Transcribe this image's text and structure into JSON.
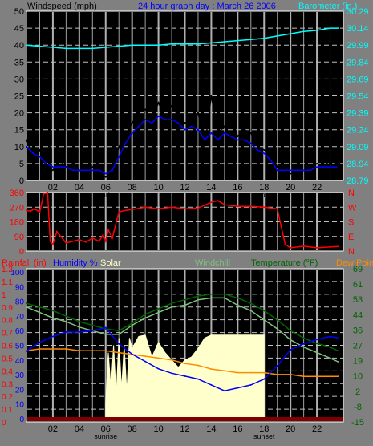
{
  "colors": {
    "background": "#808080",
    "plot_bg": "#000000",
    "grid_dash": "#c0c0c0",
    "grid_major": "#b0b0b0",
    "wind_gust": "#000000",
    "wind_avg": "#0000ff",
    "barometer": "#00ffff",
    "direction": "#ff0000",
    "rainfall": "#ff0000",
    "humidity": "#0000ff",
    "solar": "#ffffcc",
    "windchill": "#80c080",
    "temperature": "#006400",
    "dew_point": "#ff8c00",
    "baseline_rain": "#800000"
  },
  "header": {
    "windspeed_label": "Windspeed (mph)",
    "graph_title": "24 hour graph day : March 26 2006",
    "barometer_label": "Barometer (in.)"
  },
  "legend_bottom": {
    "rainfall": "Rainfall (in)",
    "humidity": "Humidity %",
    "solar": "Solar",
    "windchill": "Windchill",
    "temperature": "Temperature (°F)",
    "dew_point": "Dew Point"
  },
  "x_ticks": [
    "02",
    "04",
    "06",
    "08",
    "10",
    "12",
    "14",
    "16",
    "18",
    "20",
    "22"
  ],
  "sunrise_label": "sunrise",
  "sunset_label": "sunset",
  "sunrise_hour": 6,
  "sunset_hour": 18,
  "chart_data": [
    {
      "type": "line",
      "title": "24 hour graph day : March 26 2006",
      "xlabel": "",
      "ylabel": "Windspeed (mph)",
      "ylabel_right": "Barometer (in.)",
      "x_hours": [
        0,
        23.6
      ],
      "ylim": [
        0,
        50
      ],
      "y_ticks": [
        0,
        5,
        10,
        15,
        20,
        25,
        30,
        35,
        40,
        45,
        50
      ],
      "ylim_right": [
        28.79,
        30.29
      ],
      "y_ticks_right": [
        "28.79",
        "28.94",
        "29.09",
        "29.24",
        "29.39",
        "29.54",
        "29.69",
        "29.84",
        "29.99",
        "30.14",
        "30.29"
      ],
      "series": [
        {
          "name": "Windspeed (mph)",
          "kind": "gust",
          "x": [
            0,
            0.5,
            1,
            1.5,
            2,
            2.5,
            3,
            3.5,
            4,
            4.5,
            5,
            5.5,
            6,
            6.5,
            7,
            7.5,
            8,
            8.5,
            9,
            9.5,
            10,
            10.5,
            11,
            11.5,
            12,
            12.5,
            13,
            13.5,
            14,
            14.5,
            15,
            15.5,
            16,
            16.5,
            17,
            17.5,
            18,
            18.5,
            19,
            19.5,
            20,
            20.5,
            21,
            21.5,
            22,
            22.5,
            23,
            23.5
          ],
          "values": [
            12,
            7,
            9,
            4,
            3,
            6,
            4,
            5,
            3,
            2,
            4,
            2,
            1,
            3,
            10,
            13,
            17,
            20,
            21,
            18,
            23,
            18,
            22,
            19,
            17,
            18,
            20,
            10,
            25,
            14,
            16,
            19,
            13,
            15,
            14,
            10,
            9,
            8,
            4,
            3,
            2,
            2,
            3,
            4,
            5,
            4,
            6,
            5
          ]
        },
        {
          "name": "Windspeed (mph)",
          "kind": "average",
          "x": [
            0,
            0.5,
            1,
            1.5,
            2,
            2.5,
            3,
            3.5,
            4,
            4.5,
            5,
            5.5,
            6,
            6.5,
            7,
            7.5,
            8,
            8.5,
            9,
            9.5,
            10,
            10.5,
            11,
            11.5,
            12,
            12.5,
            13,
            13.5,
            14,
            14.5,
            15,
            15.5,
            16,
            16.5,
            17,
            17.5,
            18,
            18.5,
            19,
            19.5,
            20,
            20.5,
            21,
            21.5,
            22,
            22.5,
            23,
            23.5
          ],
          "values": [
            10,
            8,
            7,
            5,
            4,
            4,
            4,
            3,
            3,
            3,
            3,
            3,
            2,
            3,
            7,
            11,
            14,
            16,
            18,
            17,
            19,
            18,
            18,
            17,
            15,
            16,
            15,
            12,
            14,
            12,
            14,
            13,
            12,
            12,
            11,
            9,
            8,
            6,
            3,
            3,
            3,
            3,
            3,
            3,
            4,
            4,
            4,
            4
          ]
        },
        {
          "name": "Barometer (in.)",
          "kind": "barometer",
          "x": [
            0,
            1,
            2,
            3,
            4,
            5,
            6,
            7,
            8,
            9,
            10,
            11,
            12,
            13,
            14,
            15,
            16,
            17,
            18,
            19,
            20,
            21,
            22,
            23,
            23.6
          ],
          "values": [
            29.99,
            29.98,
            29.97,
            29.96,
            29.96,
            29.96,
            29.97,
            29.98,
            29.99,
            29.99,
            29.99,
            30.0,
            30.0,
            30.0,
            30.01,
            30.02,
            30.03,
            30.04,
            30.05,
            30.07,
            30.09,
            30.11,
            30.12,
            30.14,
            30.14
          ]
        }
      ]
    },
    {
      "type": "line",
      "title": "",
      "xlabel": "",
      "ylabel": "",
      "ylim": [
        0,
        360
      ],
      "y_ticks": [
        0,
        90,
        180,
        270,
        360
      ],
      "compass_labels": [
        "N",
        "W",
        "S",
        "E",
        "N"
      ],
      "series": [
        {
          "name": "",
          "x": [
            0,
            0.3,
            0.6,
            1,
            1.3,
            1.6,
            1.8,
            2.0,
            2.3,
            2.6,
            3,
            3.5,
            4,
            4.5,
            5,
            5.5,
            5.8,
            6,
            6.2,
            6.5,
            7,
            7.5,
            8,
            9,
            10,
            11,
            12,
            13,
            14,
            14.5,
            15,
            16,
            17,
            18,
            18.5,
            19,
            19.3,
            19.6,
            20,
            21,
            22,
            23,
            23.6
          ],
          "values": [
            250,
            245,
            260,
            240,
            350,
            360,
            60,
            40,
            120,
            90,
            50,
            60,
            70,
            55,
            80,
            60,
            100,
            60,
            130,
            80,
            240,
            250,
            255,
            270,
            260,
            270,
            260,
            265,
            300,
            310,
            285,
            275,
            275,
            270,
            265,
            260,
            150,
            40,
            20,
            30,
            20,
            25,
            28
          ]
        }
      ]
    },
    {
      "type": "line",
      "title": "",
      "xlabel": "",
      "ylabel": "Rainfall (in)",
      "ylabel_right": "Temperature (°F)",
      "ylim_left_rain": [
        0,
        1.2
      ],
      "y_ticks_left_rain": [
        "0",
        "0.1",
        "0.2",
        "0.3",
        "0.4",
        "0.5",
        "0.6",
        "0.7",
        "0.8",
        "0.9",
        "1",
        "1.1",
        "1.2"
      ],
      "y_ticks_left_humidity": [
        "0",
        "10",
        "20",
        "30",
        "40",
        "50",
        "60",
        "70",
        "80",
        "90",
        "100"
      ],
      "ylim_right": [
        -15,
        69
      ],
      "y_ticks_right": [
        "-15",
        "-8",
        "2",
        "10",
        "19",
        "27",
        "36",
        "44",
        "53",
        "61",
        "69"
      ],
      "series": [
        {
          "name": "Rainfall (in)",
          "x": [
            0,
            23.6
          ],
          "values": [
            0,
            0
          ]
        },
        {
          "name": "Humidity %",
          "x": [
            0,
            1,
            2,
            3,
            4,
            5,
            6,
            7,
            8,
            9,
            10,
            11,
            12,
            13,
            14,
            15,
            16,
            17,
            18,
            19,
            20,
            21,
            22,
            23,
            23.6
          ],
          "values": [
            46,
            52,
            56,
            59,
            59,
            60,
            62,
            51,
            44,
            39,
            34,
            31,
            29,
            27,
            23,
            19,
            21,
            23,
            27,
            36,
            47,
            51,
            54,
            56,
            55
          ]
        },
        {
          "name": "Solar",
          "x": [
            6,
            6.2,
            6.4,
            6.6,
            6.8,
            7,
            7.2,
            7.4,
            7.6,
            7.8,
            8,
            8.5,
            9,
            9.5,
            10,
            10.5,
            11,
            11.5,
            12,
            12.5,
            13,
            13.5,
            14,
            15,
            16,
            17,
            17.5,
            18
          ],
          "values": [
            10,
            45,
            20,
            50,
            15,
            55,
            20,
            50,
            18,
            55,
            48,
            56,
            57,
            42,
            52,
            45,
            40,
            35,
            40,
            42,
            48,
            55,
            57,
            57,
            57,
            57,
            57,
            57
          ]
        },
        {
          "name": "Windchill",
          "x": [
            0,
            1,
            2,
            3,
            4,
            5,
            6,
            7,
            8,
            9,
            10,
            11,
            12,
            13,
            14,
            15,
            16,
            17,
            18,
            19,
            20,
            21,
            22,
            23,
            23.6
          ],
          "values": [
            48,
            45,
            42,
            40,
            37,
            35,
            33,
            33,
            38,
            42,
            45,
            48,
            49,
            52,
            53,
            53,
            49,
            46,
            41,
            36,
            30,
            26,
            23,
            20,
            18
          ]
        },
        {
          "name": "Temperature (°F)",
          "x": [
            0,
            1,
            2,
            3,
            4,
            5,
            6,
            7,
            8,
            9,
            10,
            11,
            12,
            13,
            14,
            15,
            16,
            17,
            18,
            19,
            20,
            21,
            22,
            23,
            23.6
          ],
          "values": [
            50,
            48,
            46,
            43,
            40,
            38,
            36,
            35,
            39,
            44,
            47,
            50,
            52,
            54,
            55,
            55,
            53,
            50,
            46,
            41,
            35,
            31,
            28,
            26,
            24
          ]
        },
        {
          "name": "Dew Point",
          "x": [
            0,
            1,
            2,
            3,
            4,
            5,
            6,
            7,
            8,
            9,
            10,
            11,
            12,
            13,
            14,
            15,
            16,
            17,
            18,
            19,
            20,
            21,
            22,
            23,
            23.6
          ],
          "values": [
            24,
            25,
            25,
            25,
            24,
            24,
            24,
            23,
            22,
            21,
            20,
            19,
            17,
            16,
            14,
            13,
            12,
            12,
            12,
            11,
            11,
            10,
            10,
            10,
            10
          ]
        }
      ]
    }
  ]
}
